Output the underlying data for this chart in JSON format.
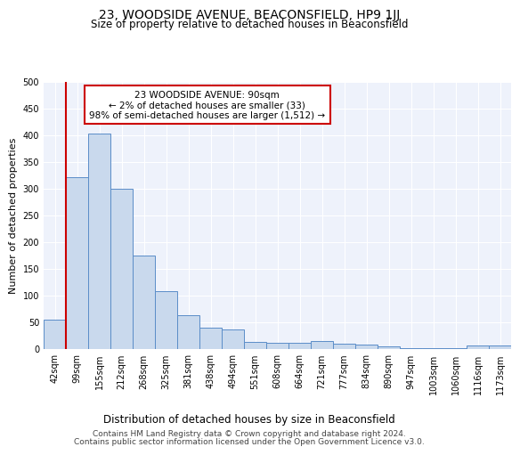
{
  "title1": "23, WOODSIDE AVENUE, BEACONSFIELD, HP9 1JJ",
  "title2": "Size of property relative to detached houses in Beaconsfield",
  "xlabel": "Distribution of detached houses by size in Beaconsfield",
  "ylabel": "Number of detached properties",
  "footer1": "Contains HM Land Registry data © Crown copyright and database right 2024.",
  "footer2": "Contains public sector information licensed under the Open Government Licence v3.0.",
  "annotation_line1": "23 WOODSIDE AVENUE: 90sqm",
  "annotation_line2": "← 2% of detached houses are smaller (33)",
  "annotation_line3": "98% of semi-detached houses are larger (1,512) →",
  "bar_color": "#c9d9ed",
  "bar_edge_color": "#5b8dc8",
  "red_line_color": "#cc0000",
  "background_color": "#eef2fb",
  "categories": [
    "42sqm",
    "99sqm",
    "155sqm",
    "212sqm",
    "268sqm",
    "325sqm",
    "381sqm",
    "438sqm",
    "494sqm",
    "551sqm",
    "608sqm",
    "664sqm",
    "721sqm",
    "777sqm",
    "834sqm",
    "890sqm",
    "947sqm",
    "1003sqm",
    "1060sqm",
    "1116sqm",
    "1173sqm"
  ],
  "values": [
    55,
    322,
    403,
    300,
    175,
    108,
    63,
    40,
    37,
    13,
    12,
    12,
    15,
    10,
    8,
    5,
    2,
    1,
    1,
    6,
    7
  ],
  "ylim": [
    0,
    500
  ],
  "yticks": [
    0,
    50,
    100,
    150,
    200,
    250,
    300,
    350,
    400,
    450,
    500
  ],
  "red_line_bin_edge": 1,
  "title1_fontsize": 10,
  "title2_fontsize": 8.5,
  "xlabel_fontsize": 8.5,
  "ylabel_fontsize": 8,
  "tick_fontsize": 7,
  "annotation_fontsize": 7.5,
  "footer_fontsize": 6.5
}
